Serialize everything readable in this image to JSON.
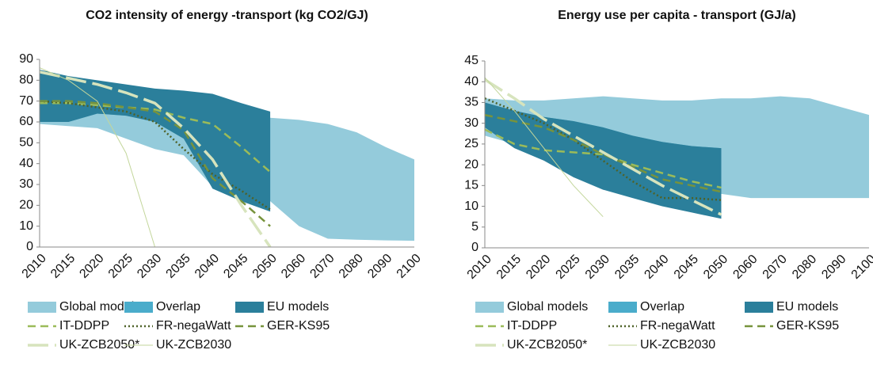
{
  "chart_data": [
    {
      "type": "range-line",
      "title": "CO2 intensity of energy -transport (kg CO2/GJ)",
      "categories": [
        2010,
        2015,
        2020,
        2025,
        2030,
        2035,
        2040,
        2045,
        2050,
        2060,
        2070,
        2080,
        2090,
        2100
      ],
      "ylim": [
        0,
        90
      ],
      "yticks": [
        0,
        10,
        20,
        30,
        40,
        50,
        60,
        70,
        80,
        90
      ],
      "series": [
        {
          "name": "Global models",
          "color": "#94cbdb",
          "kind": "band",
          "high": [
            82,
            80,
            77,
            73,
            70,
            68,
            67,
            65,
            62,
            61,
            59,
            55,
            48,
            42
          ],
          "low": [
            59,
            58,
            57,
            52,
            47,
            44,
            29,
            25,
            22,
            10,
            4,
            3.5,
            3.2,
            3
          ]
        },
        {
          "name": "Overlap",
          "color": "#4aaccb",
          "kind": "band",
          "high": [
            82,
            80,
            77,
            73,
            70,
            68,
            67,
            65,
            62,
            null,
            null,
            null,
            null,
            null
          ],
          "low": [
            60,
            60,
            64,
            63,
            60,
            52,
            29,
            25,
            22,
            null,
            null,
            null,
            null,
            null
          ]
        },
        {
          "name": "EU models",
          "color": "#2b7f9b",
          "kind": "band",
          "high": [
            85,
            82,
            80,
            78,
            76,
            75,
            73.5,
            69,
            65,
            null,
            null,
            null,
            null,
            null
          ],
          "low": [
            60,
            60,
            64,
            63,
            60,
            52,
            28,
            22,
            17,
            null,
            null,
            null,
            null,
            null
          ]
        },
        {
          "name": "IT-DDPP",
          "color": "#9bbb59",
          "kind": "line",
          "style": "dashed",
          "values": [
            69,
            69,
            68,
            67,
            66,
            62,
            59,
            48,
            36,
            null,
            null,
            null,
            null,
            null
          ]
        },
        {
          "name": "FR-negaWatt",
          "color": "#4f6228",
          "kind": "line",
          "style": "dotted",
          "values": [
            70,
            69,
            67,
            65,
            60,
            47,
            35,
            27,
            18,
            null,
            null,
            null,
            null,
            null
          ]
        },
        {
          "name": "GER-KS95",
          "color": "#77933c",
          "kind": "line",
          "style": "dashed",
          "values": [
            70,
            70,
            69,
            67,
            65,
            56,
            33,
            22,
            10,
            null,
            null,
            null,
            null,
            null
          ]
        },
        {
          "name": "UK-ZCB2050*",
          "color": "#d7e4bd",
          "kind": "line",
          "style": "long-dash",
          "values": [
            84,
            81,
            78,
            74,
            69,
            57,
            42,
            20,
            0,
            null,
            null,
            null,
            null,
            null
          ]
        },
        {
          "name": "UK-ZCB2030",
          "color": "#c3d69b",
          "kind": "line",
          "style": "solid",
          "values": [
            86,
            80,
            70,
            45,
            0,
            null,
            null,
            null,
            null,
            null,
            null,
            null,
            null,
            null
          ]
        }
      ]
    },
    {
      "type": "range-line",
      "title": "Energy use per capita - transport (GJ/a)",
      "categories": [
        2010,
        2015,
        2020,
        2025,
        2030,
        2035,
        2040,
        2045,
        2050,
        2060,
        2070,
        2080,
        2090,
        2100
      ],
      "ylim": [
        0,
        45
      ],
      "yticks": [
        0,
        5,
        10,
        15,
        20,
        25,
        30,
        35,
        40,
        45
      ],
      "series": [
        {
          "name": "Global models",
          "color": "#94cbdb",
          "kind": "band",
          "high": [
            36,
            35.5,
            35.5,
            36,
            36.5,
            36,
            35.5,
            35.5,
            36,
            36,
            36.5,
            36,
            34,
            32
          ],
          "low": [
            27,
            25,
            22,
            20,
            18,
            16,
            15,
            14,
            13,
            12,
            12,
            12,
            12,
            12
          ]
        },
        {
          "name": "Overlap",
          "color": "#4aaccb",
          "kind": "band",
          "high": [
            35,
            33,
            31.5,
            30.5,
            29,
            27,
            25.5,
            24.5,
            24,
            null,
            null,
            null,
            null,
            null
          ],
          "low": [
            29,
            25,
            22,
            20,
            18,
            16,
            15,
            14,
            13,
            null,
            null,
            null,
            null,
            null
          ]
        },
        {
          "name": "EU models",
          "color": "#2b7f9b",
          "kind": "band",
          "high": [
            35,
            33,
            31.5,
            30.5,
            29,
            27,
            25.5,
            24.5,
            24,
            null,
            null,
            null,
            null,
            null
          ],
          "low": [
            29,
            24,
            21,
            17,
            14,
            12,
            10,
            8.5,
            7,
            null,
            null,
            null,
            null,
            null
          ]
        },
        {
          "name": "IT-DDPP",
          "color": "#9bbb59",
          "kind": "line",
          "style": "dashed",
          "values": [
            28.5,
            25,
            23.5,
            23,
            22.5,
            20,
            18,
            16,
            14.5,
            null,
            null,
            null,
            null,
            null
          ]
        },
        {
          "name": "FR-negaWatt",
          "color": "#4f6228",
          "kind": "line",
          "style": "dotted",
          "values": [
            36,
            33,
            30,
            26,
            21,
            16,
            12,
            12,
            11.5,
            null,
            null,
            null,
            null,
            null
          ]
        },
        {
          "name": "GER-KS95",
          "color": "#77933c",
          "kind": "line",
          "style": "dashed",
          "values": [
            32,
            30.5,
            29,
            26,
            22.5,
            19.5,
            16.5,
            15,
            13.5,
            null,
            null,
            null,
            null,
            null
          ]
        },
        {
          "name": "UK-ZCB2050*",
          "color": "#d7e4bd",
          "kind": "line",
          "style": "long-dash",
          "values": [
            40.5,
            36,
            31,
            27,
            23,
            19,
            15,
            11.5,
            8,
            null,
            null,
            null,
            null,
            null
          ]
        },
        {
          "name": "UK-ZCB2030",
          "color": "#c3d69b",
          "kind": "line",
          "style": "solid",
          "values": [
            41,
            33,
            24,
            15,
            7.5,
            null,
            null,
            null,
            null,
            null,
            null,
            null,
            null,
            null
          ]
        }
      ]
    }
  ]
}
